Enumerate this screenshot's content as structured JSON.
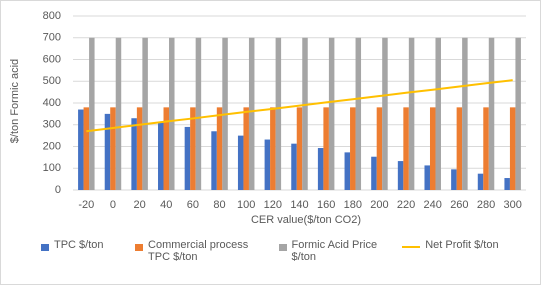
{
  "chart_data": {
    "type": "bar-line",
    "x_label": "CER value($/ton CO2)",
    "y_label": "$/ton Formic acid",
    "categories": [
      "-20",
      "0",
      "20",
      "40",
      "60",
      "80",
      "100",
      "120",
      "140",
      "160",
      "180",
      "200",
      "220",
      "240",
      "260",
      "280",
      "300"
    ],
    "series": [
      {
        "name": "TPC $/ton",
        "color": "#4472c4",
        "kind": "bar",
        "values": [
          370,
          350,
          330,
          310,
          290,
          270,
          250,
          232,
          213,
          193,
          173,
          153,
          133,
          113,
          95,
          75,
          55
        ]
      },
      {
        "name": "Commercial process TPC $/ton",
        "color": "#ed7d31",
        "kind": "bar",
        "values": [
          380,
          380,
          380,
          380,
          380,
          380,
          380,
          380,
          380,
          380,
          380,
          380,
          380,
          380,
          380,
          380,
          380
        ]
      },
      {
        "name": "Formic Acid Price $/ton",
        "color": "#a5a5a5",
        "kind": "bar",
        "values": [
          700,
          700,
          700,
          700,
          700,
          700,
          700,
          700,
          700,
          700,
          700,
          700,
          700,
          700,
          700,
          700,
          700
        ]
      },
      {
        "name": "Net Profit $/ton",
        "color": "#ffc000",
        "kind": "line",
        "values": [
          270,
          285,
          300,
          315,
          329,
          344,
          359,
          373,
          388,
          403,
          417,
          432,
          447,
          461,
          476,
          491,
          505
        ]
      }
    ],
    "ylim": [
      0,
      800
    ],
    "yticks": [
      0,
      100,
      200,
      300,
      400,
      500,
      600,
      700,
      800
    ],
    "grid": true
  }
}
